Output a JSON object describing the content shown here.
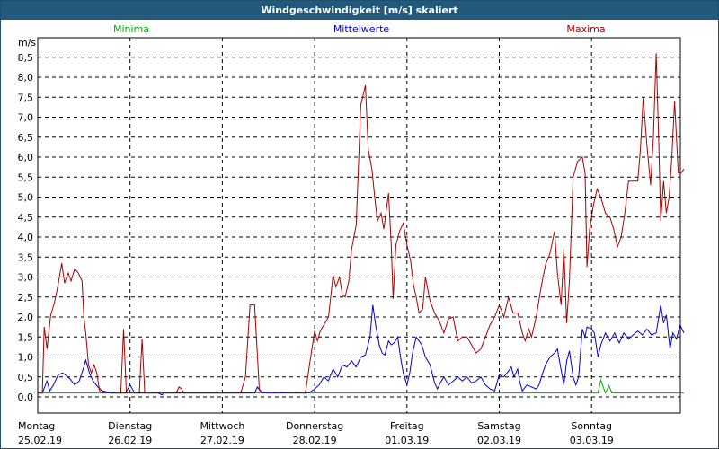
{
  "window": {
    "title": "Windgeschwindigkeit [m/s] skaliert"
  },
  "legend": {
    "min": "Minima",
    "mean": "Mittelwerte",
    "max": "Maxima"
  },
  "colors": {
    "min": "#00aa00",
    "mean": "#0000cc",
    "max": "#aa0000",
    "grid": "#000000",
    "titlebar": "#235a7c"
  },
  "chart_data": {
    "type": "line",
    "ylabel": "m/s",
    "ylim": [
      0,
      8.5
    ],
    "yticks": [
      "0,0",
      "0,5",
      "1,0",
      "1,5",
      "2,0",
      "2,5",
      "3,0",
      "3,5",
      "4,0",
      "4,5",
      "5,0",
      "5,5",
      "6,0",
      "6,5",
      "7,0",
      "7,5",
      "8,0",
      "8,5"
    ],
    "xlim": [
      0,
      7
    ],
    "days": [
      {
        "name": "Montag",
        "date": "25.02.19"
      },
      {
        "name": "Dienstag",
        "date": "26.02.19"
      },
      {
        "name": "Mittwoch",
        "date": "27.02.19"
      },
      {
        "name": "Donnerstag",
        "date": "28.02.19"
      },
      {
        "name": "Freitag",
        "date": "01.03.19"
      },
      {
        "name": "Samstag",
        "date": "02.03.19"
      },
      {
        "name": "Sonntag",
        "date": "03.03.19"
      }
    ],
    "grid": true,
    "legend_position": "top",
    "series": [
      {
        "name": "Minima",
        "color": "#00aa00",
        "points": [
          [
            0,
            0.1
          ],
          [
            1,
            0.1
          ],
          [
            2,
            0.1
          ],
          [
            3,
            0.1
          ],
          [
            6.0,
            0.1
          ],
          [
            6.07,
            0.1
          ],
          [
            6.1,
            0.42
          ],
          [
            6.15,
            0.1
          ],
          [
            6.19,
            0.28
          ],
          [
            6.22,
            0.1
          ],
          [
            7,
            0.1
          ]
        ]
      },
      {
        "name": "Mittelwerte",
        "color": "#0000cc",
        "points": [
          [
            0.0,
            0.1
          ],
          [
            0.05,
            0.1
          ],
          [
            0.1,
            0.4
          ],
          [
            0.13,
            0.15
          ],
          [
            0.17,
            0.3
          ],
          [
            0.22,
            0.55
          ],
          [
            0.27,
            0.6
          ],
          [
            0.3,
            0.55
          ],
          [
            0.35,
            0.45
          ],
          [
            0.4,
            0.3
          ],
          [
            0.45,
            0.4
          ],
          [
            0.5,
            0.75
          ],
          [
            0.52,
            0.92
          ],
          [
            0.56,
            0.6
          ],
          [
            0.6,
            0.4
          ],
          [
            0.65,
            0.25
          ],
          [
            0.7,
            0.15
          ],
          [
            0.8,
            0.1
          ],
          [
            0.95,
            0.1
          ],
          [
            1.0,
            0.3
          ],
          [
            1.05,
            0.1
          ],
          [
            1.3,
            0.1
          ],
          [
            1.3,
            0.1
          ],
          [
            1.35,
            0.05
          ],
          [
            1.36,
            0.1
          ],
          [
            2.0,
            0.1
          ],
          [
            2.25,
            0.1
          ],
          [
            2.35,
            0.1
          ],
          [
            2.38,
            0.25
          ],
          [
            2.42,
            0.12
          ],
          [
            2.9,
            0.1
          ],
          [
            2.95,
            0.12
          ],
          [
            3.0,
            0.2
          ],
          [
            3.05,
            0.3
          ],
          [
            3.1,
            0.5
          ],
          [
            3.15,
            0.4
          ],
          [
            3.2,
            0.7
          ],
          [
            3.25,
            0.5
          ],
          [
            3.3,
            0.8
          ],
          [
            3.35,
            0.75
          ],
          [
            3.4,
            0.9
          ],
          [
            3.45,
            0.75
          ],
          [
            3.5,
            1.0
          ],
          [
            3.55,
            1.05
          ],
          [
            3.6,
            1.5
          ],
          [
            3.63,
            2.3
          ],
          [
            3.66,
            1.8
          ],
          [
            3.7,
            1.3
          ],
          [
            3.73,
            1.1
          ],
          [
            3.76,
            1.05
          ],
          [
            3.8,
            1.4
          ],
          [
            3.83,
            1.3
          ],
          [
            3.86,
            1.35
          ],
          [
            3.9,
            1.5
          ],
          [
            3.93,
            1.0
          ],
          [
            3.96,
            0.6
          ],
          [
            4.0,
            0.3
          ],
          [
            4.03,
            0.6
          ],
          [
            4.06,
            1.1
          ],
          [
            4.1,
            1.5
          ],
          [
            4.13,
            1.4
          ],
          [
            4.16,
            1.3
          ],
          [
            4.2,
            1.0
          ],
          [
            4.25,
            0.8
          ],
          [
            4.3,
            0.35
          ],
          [
            4.33,
            0.2
          ],
          [
            4.36,
            0.35
          ],
          [
            4.4,
            0.5
          ],
          [
            4.45,
            0.3
          ],
          [
            4.5,
            0.4
          ],
          [
            4.55,
            0.5
          ],
          [
            4.6,
            0.4
          ],
          [
            4.65,
            0.5
          ],
          [
            4.7,
            0.35
          ],
          [
            4.75,
            0.4
          ],
          [
            4.8,
            0.5
          ],
          [
            4.85,
            0.3
          ],
          [
            4.9,
            0.2
          ],
          [
            4.95,
            0.15
          ],
          [
            5.0,
            0.55
          ],
          [
            5.05,
            0.5
          ],
          [
            5.1,
            0.65
          ],
          [
            5.13,
            0.75
          ],
          [
            5.16,
            0.5
          ],
          [
            5.2,
            0.7
          ],
          [
            5.22,
            0.4
          ],
          [
            5.25,
            0.15
          ],
          [
            5.3,
            0.3
          ],
          [
            5.35,
            0.25
          ],
          [
            5.4,
            0.2
          ],
          [
            5.43,
            0.3
          ],
          [
            5.47,
            0.6
          ],
          [
            5.5,
            0.8
          ],
          [
            5.55,
            1.0
          ],
          [
            5.6,
            1.1
          ],
          [
            5.63,
            1.2
          ],
          [
            5.66,
            0.8
          ],
          [
            5.7,
            0.3
          ],
          [
            5.73,
            0.9
          ],
          [
            5.76,
            1.15
          ],
          [
            5.8,
            0.5
          ],
          [
            5.83,
            0.3
          ],
          [
            5.86,
            0.5
          ],
          [
            5.9,
            1.7
          ],
          [
            5.93,
            1.5
          ],
          [
            5.95,
            1.75
          ],
          [
            6.0,
            1.7
          ],
          [
            6.03,
            1.6
          ],
          [
            6.07,
            1.0
          ],
          [
            6.1,
            1.3
          ],
          [
            6.15,
            1.6
          ],
          [
            6.2,
            1.4
          ],
          [
            6.25,
            1.6
          ],
          [
            6.3,
            1.35
          ],
          [
            6.35,
            1.6
          ],
          [
            6.4,
            1.45
          ],
          [
            6.45,
            1.55
          ],
          [
            6.5,
            1.65
          ],
          [
            6.55,
            1.55
          ],
          [
            6.6,
            1.7
          ],
          [
            6.65,
            1.55
          ],
          [
            6.7,
            1.6
          ],
          [
            6.75,
            2.3
          ],
          [
            6.78,
            1.85
          ],
          [
            6.81,
            2.05
          ],
          [
            6.85,
            1.2
          ],
          [
            6.88,
            1.6
          ],
          [
            6.92,
            1.45
          ],
          [
            6.96,
            1.8
          ],
          [
            7.0,
            1.6
          ]
        ]
      },
      {
        "name": "Maxima",
        "color": "#aa0000",
        "points": [
          [
            0.0,
            0.1
          ],
          [
            0.05,
            0.1
          ],
          [
            0.07,
            1.75
          ],
          [
            0.1,
            1.2
          ],
          [
            0.14,
            2.05
          ],
          [
            0.18,
            2.35
          ],
          [
            0.22,
            2.8
          ],
          [
            0.26,
            3.35
          ],
          [
            0.29,
            2.85
          ],
          [
            0.33,
            3.1
          ],
          [
            0.36,
            2.9
          ],
          [
            0.4,
            3.2
          ],
          [
            0.44,
            3.1
          ],
          [
            0.48,
            2.9
          ],
          [
            0.5,
            2.0
          ],
          [
            0.52,
            1.6
          ],
          [
            0.55,
            0.8
          ],
          [
            0.58,
            0.6
          ],
          [
            0.61,
            0.8
          ],
          [
            0.64,
            0.6
          ],
          [
            0.67,
            0.15
          ],
          [
            0.7,
            0.1
          ],
          [
            0.9,
            0.1
          ],
          [
            0.93,
            1.7
          ],
          [
            0.96,
            0.1
          ],
          [
            1.1,
            0.1
          ],
          [
            1.13,
            1.45
          ],
          [
            1.16,
            0.1
          ],
          [
            1.5,
            0.1
          ],
          [
            1.53,
            0.25
          ],
          [
            1.56,
            0.2
          ],
          [
            1.58,
            0.1
          ],
          [
            2.2,
            0.1
          ],
          [
            2.25,
            0.5
          ],
          [
            2.3,
            2.3
          ],
          [
            2.35,
            2.3
          ],
          [
            2.4,
            0.2
          ],
          [
            2.43,
            0.1
          ],
          [
            2.9,
            0.1
          ],
          [
            2.95,
            0.9
          ],
          [
            3.0,
            1.65
          ],
          [
            3.03,
            1.4
          ],
          [
            3.06,
            1.65
          ],
          [
            3.1,
            1.8
          ],
          [
            3.15,
            2.0
          ],
          [
            3.2,
            3.05
          ],
          [
            3.23,
            2.75
          ],
          [
            3.27,
            3.0
          ],
          [
            3.3,
            2.55
          ],
          [
            3.33,
            2.5
          ],
          [
            3.37,
            2.9
          ],
          [
            3.4,
            3.7
          ],
          [
            3.45,
            4.3
          ],
          [
            3.5,
            7.3
          ],
          [
            3.55,
            7.8
          ],
          [
            3.58,
            6.2
          ],
          [
            3.62,
            5.7
          ],
          [
            3.65,
            5.0
          ],
          [
            3.68,
            4.4
          ],
          [
            3.72,
            4.6
          ],
          [
            3.75,
            4.2
          ],
          [
            3.8,
            5.1
          ],
          [
            3.83,
            3.8
          ],
          [
            3.85,
            2.45
          ],
          [
            3.88,
            3.8
          ],
          [
            3.92,
            4.15
          ],
          [
            3.96,
            4.35
          ],
          [
            4.0,
            3.8
          ],
          [
            4.04,
            3.4
          ],
          [
            4.07,
            2.8
          ],
          [
            4.1,
            2.5
          ],
          [
            4.13,
            2.1
          ],
          [
            4.17,
            2.2
          ],
          [
            4.2,
            3.0
          ],
          [
            4.25,
            2.4
          ],
          [
            4.3,
            2.1
          ],
          [
            4.35,
            1.9
          ],
          [
            4.4,
            1.6
          ],
          [
            4.45,
            1.95
          ],
          [
            4.5,
            2.0
          ],
          [
            4.55,
            1.4
          ],
          [
            4.6,
            1.5
          ],
          [
            4.65,
            1.5
          ],
          [
            4.7,
            1.3
          ],
          [
            4.75,
            1.1
          ],
          [
            4.8,
            1.2
          ],
          [
            4.85,
            1.5
          ],
          [
            4.9,
            1.8
          ],
          [
            4.95,
            2.0
          ],
          [
            5.0,
            2.3
          ],
          [
            5.05,
            2.0
          ],
          [
            5.1,
            2.5
          ],
          [
            5.15,
            2.1
          ],
          [
            5.2,
            2.1
          ],
          [
            5.25,
            1.6
          ],
          [
            5.28,
            1.4
          ],
          [
            5.32,
            1.7
          ],
          [
            5.35,
            1.5
          ],
          [
            5.4,
            2.0
          ],
          [
            5.45,
            2.7
          ],
          [
            5.5,
            3.3
          ],
          [
            5.55,
            3.6
          ],
          [
            5.6,
            4.15
          ],
          [
            5.63,
            3.1
          ],
          [
            5.67,
            2.3
          ],
          [
            5.7,
            3.7
          ],
          [
            5.73,
            1.85
          ],
          [
            5.76,
            2.9
          ],
          [
            5.8,
            5.5
          ],
          [
            5.85,
            5.9
          ],
          [
            5.9,
            6.0
          ],
          [
            5.93,
            5.6
          ],
          [
            5.95,
            3.25
          ],
          [
            5.98,
            4.2
          ],
          [
            6.02,
            4.8
          ],
          [
            6.06,
            5.2
          ],
          [
            6.1,
            5.0
          ],
          [
            6.15,
            4.6
          ],
          [
            6.2,
            4.5
          ],
          [
            6.24,
            4.2
          ],
          [
            6.28,
            3.75
          ],
          [
            6.32,
            4.0
          ],
          [
            6.36,
            4.6
          ],
          [
            6.4,
            5.4
          ],
          [
            6.45,
            5.4
          ],
          [
            6.5,
            5.4
          ],
          [
            6.53,
            6.2
          ],
          [
            6.56,
            7.5
          ],
          [
            6.6,
            6.3
          ],
          [
            6.62,
            5.8
          ],
          [
            6.64,
            5.3
          ],
          [
            6.67,
            6.5
          ],
          [
            6.7,
            8.6
          ],
          [
            6.73,
            6.2
          ],
          [
            6.75,
            4.4
          ],
          [
            6.78,
            5.4
          ],
          [
            6.81,
            4.6
          ],
          [
            6.84,
            5.0
          ],
          [
            6.87,
            6.0
          ],
          [
            6.9,
            7.4
          ],
          [
            6.94,
            5.6
          ],
          [
            6.97,
            5.6
          ],
          [
            7.0,
            5.7
          ]
        ]
      }
    ]
  }
}
